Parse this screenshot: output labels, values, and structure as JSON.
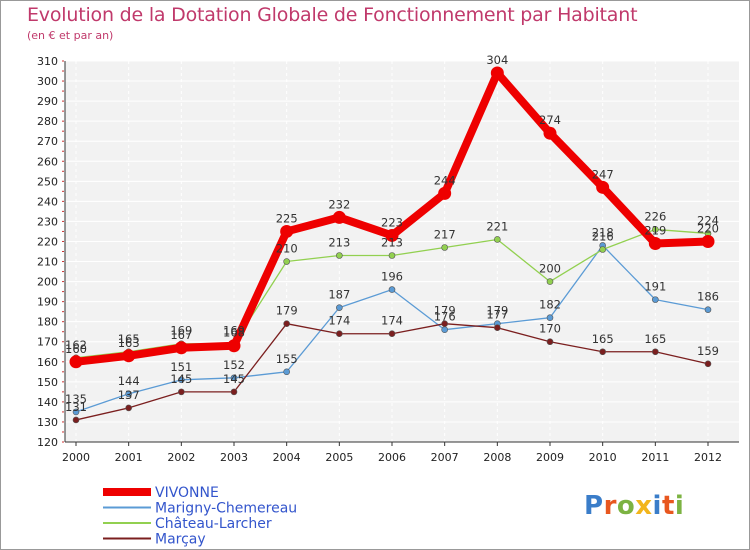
{
  "title": "Evolution de la Dotation Globale de Fonctionnement par Habitant",
  "subtitle": "(en € et par an)",
  "logo_text": "Proxiti",
  "colors": {
    "title": "#c0396b",
    "VIVONNE": "#ee0000",
    "Marigny-Chemereau": "#5b9bd5",
    "Château-Larcher": "#92d050",
    "Marçay": "#7b1f1f"
  },
  "chart_data": {
    "type": "line",
    "title": "Evolution de la Dotation Globale de Fonctionnement par Habitant",
    "subtitle": "(en € et par an)",
    "xlabel": "",
    "ylabel": "",
    "x": [
      "2000",
      "2001",
      "2002",
      "2003",
      "2004",
      "2005",
      "2006",
      "2007",
      "2008",
      "2009",
      "2010",
      "2011",
      "2012"
    ],
    "ylim": [
      120,
      310
    ],
    "yticks": [
      120,
      130,
      140,
      150,
      160,
      170,
      180,
      190,
      200,
      210,
      220,
      230,
      240,
      250,
      260,
      270,
      280,
      290,
      300,
      310
    ],
    "grid": true,
    "legend_position": "bottom-left",
    "series": [
      {
        "name": "VIVONNE",
        "values": [
          160,
          163,
          167,
          168,
          225,
          232,
          223,
          244,
          304,
          274,
          247,
          219,
          220
        ]
      },
      {
        "name": "Marigny-Chemereau",
        "values": [
          135,
          144,
          151,
          152,
          155,
          187,
          196,
          176,
          179,
          182,
          218,
          191,
          186
        ]
      },
      {
        "name": "Château-Larcher",
        "values": [
          162,
          165,
          169,
          169,
          210,
          213,
          213,
          217,
          221,
          200,
          216,
          226,
          224
        ]
      },
      {
        "name": "Marçay",
        "values": [
          131,
          137,
          145,
          145,
          179,
          174,
          174,
          179,
          177,
          170,
          165,
          165,
          159
        ]
      }
    ]
  }
}
